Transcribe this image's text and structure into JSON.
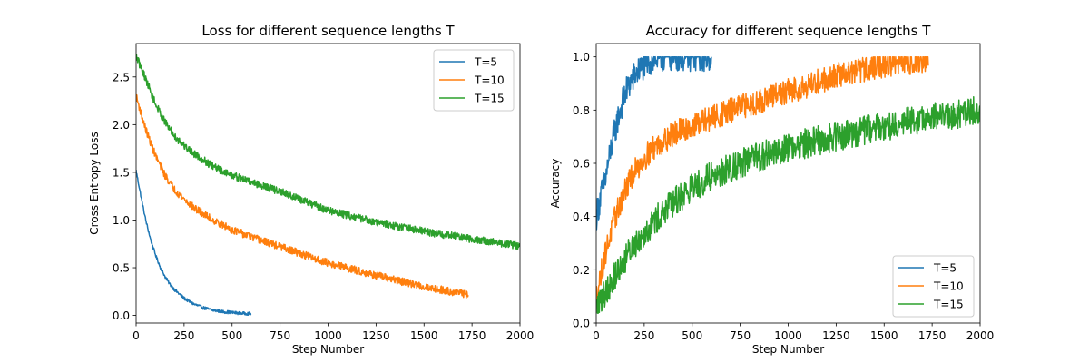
{
  "chart_data": [
    {
      "type": "line",
      "title": "Loss for different sequence lengths T",
      "xlabel": "Step Number",
      "ylabel": "Cross Entropy Loss",
      "xlim": [
        0,
        2000
      ],
      "ylim": [
        -0.08,
        2.85
      ],
      "xticks": [
        0,
        250,
        500,
        750,
        1000,
        1250,
        1500,
        1750,
        2000
      ],
      "yticks": [
        0.0,
        0.5,
        1.0,
        1.5,
        2.0,
        2.5
      ],
      "ytick_labels": [
        "0.0",
        "0.5",
        "1.0",
        "1.5",
        "2.0",
        "2.5"
      ],
      "legend": "upper right",
      "series": [
        {
          "name": "T=5",
          "color": "#1f77b4",
          "noise": 0.01,
          "x": [
            0,
            25,
            50,
            75,
            100,
            125,
            150,
            175,
            200,
            250,
            300,
            350,
            400,
            450,
            500,
            550,
            600
          ],
          "y": [
            1.52,
            1.25,
            1.0,
            0.8,
            0.64,
            0.51,
            0.41,
            0.33,
            0.27,
            0.18,
            0.12,
            0.08,
            0.055,
            0.04,
            0.03,
            0.022,
            0.018
          ]
        },
        {
          "name": "T=10",
          "color": "#ff7f0e",
          "noise": 0.025,
          "x": [
            0,
            50,
            100,
            150,
            200,
            250,
            300,
            400,
            500,
            600,
            750,
            1000,
            1250,
            1500,
            1730
          ],
          "y": [
            2.3,
            1.95,
            1.68,
            1.47,
            1.32,
            1.22,
            1.13,
            1.0,
            0.9,
            0.82,
            0.72,
            0.55,
            0.42,
            0.3,
            0.22
          ]
        },
        {
          "name": "T=15",
          "color": "#2ca02c",
          "noise": 0.025,
          "x": [
            0,
            50,
            100,
            150,
            200,
            250,
            300,
            400,
            500,
            600,
            750,
            1000,
            1250,
            1500,
            1750,
            2000
          ],
          "y": [
            2.72,
            2.48,
            2.22,
            2.03,
            1.88,
            1.78,
            1.7,
            1.56,
            1.47,
            1.4,
            1.3,
            1.1,
            0.98,
            0.88,
            0.8,
            0.73
          ]
        }
      ]
    },
    {
      "type": "line",
      "title": "Accuracy for different sequence lengths T",
      "xlabel": "Step Number",
      "ylabel": "Accuracy",
      "xlim": [
        0,
        2000
      ],
      "ylim": [
        0.0,
        1.05
      ],
      "xticks": [
        0,
        250,
        500,
        750,
        1000,
        1250,
        1500,
        1750,
        2000
      ],
      "yticks": [
        0.0,
        0.2,
        0.4,
        0.6,
        0.8,
        1.0
      ],
      "ytick_labels": [
        "0.0",
        "0.2",
        "0.4",
        "0.6",
        "0.8",
        "1.0"
      ],
      "legend": "lower right",
      "series": [
        {
          "name": "T=5",
          "color": "#1f77b4",
          "noise": 0.035,
          "x": [
            0,
            25,
            50,
            75,
            100,
            125,
            150,
            175,
            200,
            250,
            300,
            350,
            400,
            500,
            600
          ],
          "y": [
            0.4,
            0.48,
            0.55,
            0.65,
            0.73,
            0.8,
            0.86,
            0.9,
            0.93,
            0.97,
            0.99,
            1.0,
            1.0,
            1.0,
            1.0
          ]
        },
        {
          "name": "T=10",
          "color": "#ff7f0e",
          "noise": 0.03,
          "x": [
            0,
            50,
            100,
            150,
            200,
            250,
            300,
            400,
            500,
            600,
            750,
            1000,
            1250,
            1500,
            1730
          ],
          "y": [
            0.1,
            0.27,
            0.4,
            0.5,
            0.57,
            0.62,
            0.66,
            0.71,
            0.74,
            0.77,
            0.81,
            0.87,
            0.93,
            0.97,
            0.99
          ]
        },
        {
          "name": "T=15",
          "color": "#2ca02c",
          "noise": 0.035,
          "x": [
            0,
            50,
            100,
            150,
            200,
            250,
            300,
            400,
            500,
            600,
            750,
            1000,
            1250,
            1500,
            1750,
            2000
          ],
          "y": [
            0.06,
            0.12,
            0.18,
            0.24,
            0.3,
            0.34,
            0.38,
            0.45,
            0.51,
            0.55,
            0.6,
            0.66,
            0.7,
            0.74,
            0.77,
            0.8
          ]
        }
      ]
    }
  ]
}
